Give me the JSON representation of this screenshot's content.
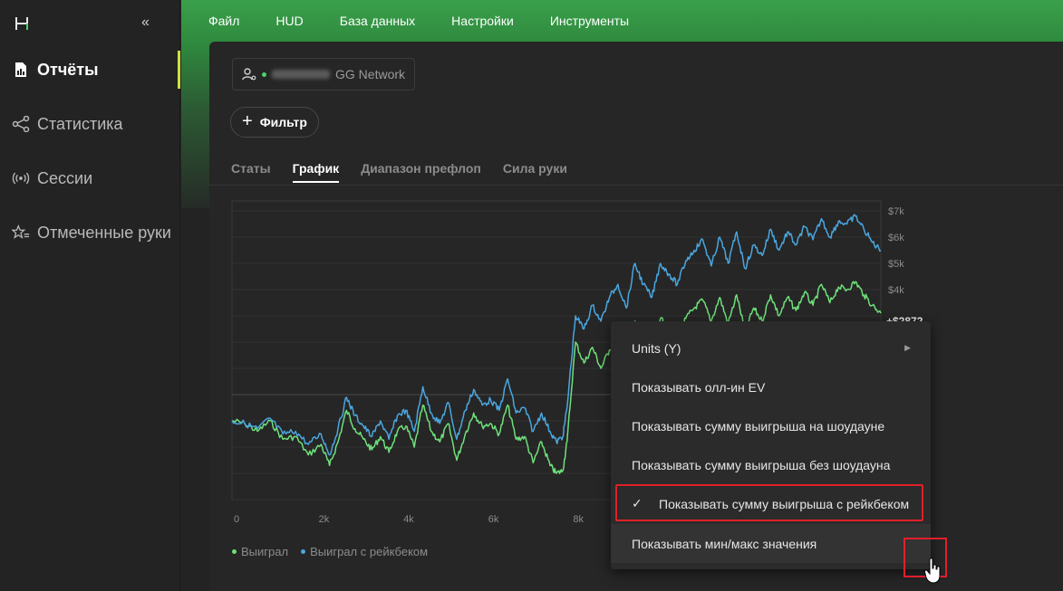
{
  "sidebar": {
    "collapse_label": "«",
    "items": [
      {
        "label": "Отчёты",
        "icon": "report-icon",
        "active": true
      },
      {
        "label": "Статистика",
        "icon": "share-nodes-icon",
        "active": false
      },
      {
        "label": "Сессии",
        "icon": "broadcast-icon",
        "active": false
      },
      {
        "label": "Отмеченные руки",
        "icon": "star-list-icon",
        "active": false
      }
    ],
    "accent": "#c9e43a"
  },
  "menu": [
    "Файл",
    "HUD",
    "База данных",
    "Настройки",
    "Инструменты"
  ],
  "filters": {
    "network_label": "GG Network",
    "filter_button": "Фильтр"
  },
  "tabs": [
    "Статы",
    "График",
    "Диапазон префлоп",
    "Сила руки"
  ],
  "active_tab": "График",
  "chart_data": {
    "type": "line",
    "xlabel": "",
    "ylabel": "",
    "x_ticks": [
      "0",
      "2k",
      "4k",
      "6k",
      "8k"
    ],
    "x_tick_values": [
      0,
      2000,
      4000,
      6000,
      8000
    ],
    "y_ticks": [
      "$7k",
      "$6k",
      "$5k",
      "$4k"
    ],
    "y_tick_values": [
      7000,
      6000,
      5000,
      4000
    ],
    "current_value_label": "+$2872",
    "grid": true,
    "legend_position": "bottom-left",
    "series": [
      {
        "name": "Выиграл",
        "color": "#6fe07a",
        "x": [
          0,
          300,
          600,
          900,
          1200,
          1500,
          1800,
          2100,
          2300,
          2500,
          2700,
          2900,
          3100,
          3300,
          3500,
          3700,
          3900,
          4100,
          4300,
          4500,
          4700,
          4900,
          5100,
          5300,
          5500,
          5700,
          5900,
          6100,
          6300,
          6500,
          6700,
          6900,
          7100,
          7300,
          7500,
          7650,
          7800,
          7900,
          8100,
          8300,
          8500,
          8700,
          8900,
          9100,
          9300,
          9500,
          9700,
          9900,
          10100,
          10300,
          10500,
          10700,
          10900,
          11100,
          11300,
          11500,
          11700,
          11900,
          12100,
          12300,
          12500,
          12700,
          12900,
          13100,
          13300,
          13500,
          13700,
          13900,
          14100,
          14300,
          14500,
          14700,
          14900,
          15100,
          15300
        ],
        "values": [
          -1000,
          -1100,
          -1400,
          -1000,
          -1700,
          -1600,
          -2300,
          -1900,
          -2700,
          -1800,
          -600,
          -1300,
          -1700,
          -2100,
          -1600,
          -2200,
          -1400,
          -1200,
          -2000,
          -400,
          -1400,
          -1800,
          -1100,
          -2500,
          -1500,
          -700,
          -1200,
          -1100,
          -1500,
          -400,
          -1700,
          -1600,
          -2600,
          -1800,
          -2700,
          -3000,
          -2900,
          -1800,
          2000,
          1200,
          1800,
          1000,
          1700,
          2200,
          1300,
          2800,
          2100,
          1700,
          2900,
          2500,
          2100,
          2900,
          3300,
          3600,
          2800,
          3700,
          2700,
          3800,
          2400,
          3300,
          2800,
          3800,
          3000,
          3700,
          3200,
          3900,
          3400,
          4200,
          3500,
          4100,
          4000,
          4300,
          3800,
          3400,
          3100
        ]
      },
      {
        "name": "Выиграл с рейкбеком",
        "color": "#4aa6e0",
        "x": [
          0,
          300,
          600,
          900,
          1200,
          1500,
          1800,
          2100,
          2300,
          2500,
          2700,
          2900,
          3100,
          3300,
          3500,
          3700,
          3900,
          4100,
          4300,
          4500,
          4700,
          4900,
          5100,
          5300,
          5500,
          5700,
          5900,
          6100,
          6300,
          6500,
          6700,
          6900,
          7100,
          7300,
          7500,
          7650,
          7800,
          7900,
          8100,
          8300,
          8500,
          8700,
          8900,
          9100,
          9300,
          9500,
          9700,
          9900,
          10100,
          10300,
          10500,
          10700,
          10900,
          11100,
          11300,
          11500,
          11700,
          11900,
          12100,
          12300,
          12500,
          12700,
          12900,
          13100,
          13300,
          13500,
          13700,
          13900,
          14100,
          14300,
          14500,
          14700,
          14900,
          15100,
          15300
        ],
        "values": [
          -1000,
          -1100,
          -1300,
          -900,
          -1500,
          -1400,
          -1900,
          -1500,
          -2300,
          -1300,
          -100,
          -800,
          -1200,
          -1600,
          -1000,
          -1700,
          -800,
          -600,
          -1400,
          300,
          -700,
          -1100,
          -300,
          -1700,
          -600,
          200,
          -400,
          -200,
          -600,
          600,
          -700,
          -500,
          -1400,
          -700,
          -1400,
          -1800,
          -1600,
          -500,
          3000,
          2500,
          3400,
          2800,
          3700,
          4200,
          3300,
          5000,
          4200,
          3700,
          5000,
          4600,
          4200,
          5100,
          5500,
          5900,
          4900,
          6000,
          5000,
          6200,
          4800,
          5700,
          5300,
          6300,
          5500,
          6200,
          5700,
          6400,
          5900,
          6700,
          6000,
          6600,
          6500,
          6800,
          6300,
          5800,
          5500
        ]
      }
    ]
  },
  "context_menu": {
    "items": [
      {
        "label": "Units (Y)",
        "submenu": true,
        "checked": false
      },
      {
        "label": "Показывать олл-ин EV",
        "submenu": false,
        "checked": false
      },
      {
        "label": "Показывать сумму выигрыша на шоудауне",
        "submenu": false,
        "checked": false
      },
      {
        "label": "Показывать сумму выигрыша без шоудауна",
        "submenu": false,
        "checked": false
      },
      {
        "label": "Показывать сумму выигрыша с рейкбеком",
        "submenu": false,
        "checked": true
      },
      {
        "label": "Показывать мин/макс значения",
        "submenu": false,
        "checked": false
      }
    ],
    "check_mark": "✓",
    "submenu_arrow": "▶"
  },
  "colors": {
    "highlight": "#e0202a",
    "topbar": "#3aa34a"
  }
}
